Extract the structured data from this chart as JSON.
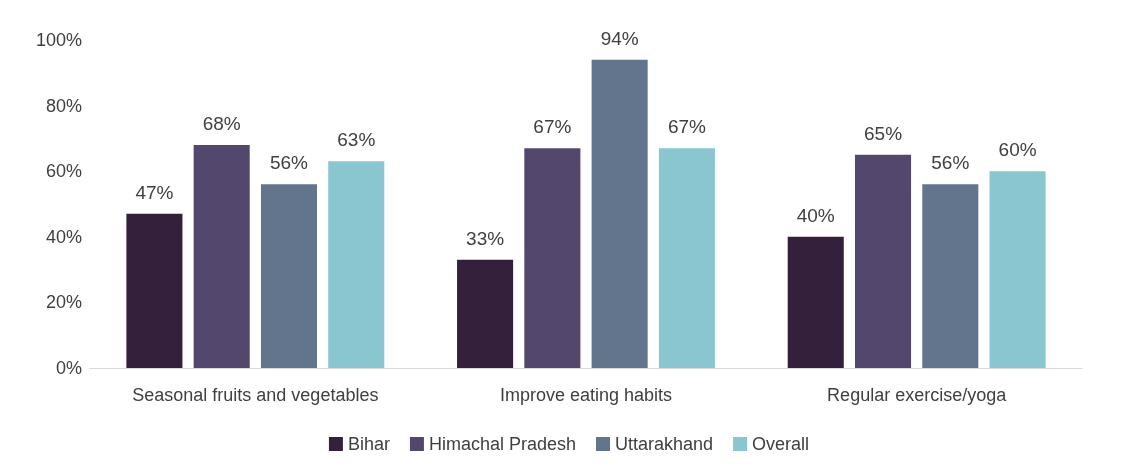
{
  "chart_data": {
    "type": "bar",
    "categories": [
      "Seasonal fruits and vegetables",
      "Improve eating habits",
      "Regular exercise/yoga"
    ],
    "series": [
      {
        "name": "Bihar",
        "color": "#35203b",
        "values": [
          47,
          33,
          40
        ],
        "value_labels": [
          "47%",
          "33%",
          "40%"
        ]
      },
      {
        "name": "Himachal Pradesh",
        "color": "#54476e",
        "values": [
          68,
          67,
          65
        ],
        "value_labels": [
          "68%",
          "67%",
          "65%"
        ]
      },
      {
        "name": "Uttarakhand",
        "color": "#62758d",
        "values": [
          56,
          94,
          56
        ],
        "value_labels": [
          "56%",
          "94%",
          "56%"
        ]
      },
      {
        "name": "Overall",
        "color": "#8ac6d0",
        "values": [
          63,
          67,
          60
        ],
        "value_labels": [
          "63%",
          "67%",
          "60%"
        ]
      }
    ],
    "ylim": [
      0,
      100
    ],
    "yticks": [
      {
        "value": 0,
        "label": "0%"
      },
      {
        "value": 20,
        "label": "20%"
      },
      {
        "value": 40,
        "label": "40%"
      },
      {
        "value": 60,
        "label": "60%"
      },
      {
        "value": 80,
        "label": "80%"
      },
      {
        "value": 100,
        "label": "100%"
      }
    ],
    "grid": false,
    "legend": "bottom"
  }
}
